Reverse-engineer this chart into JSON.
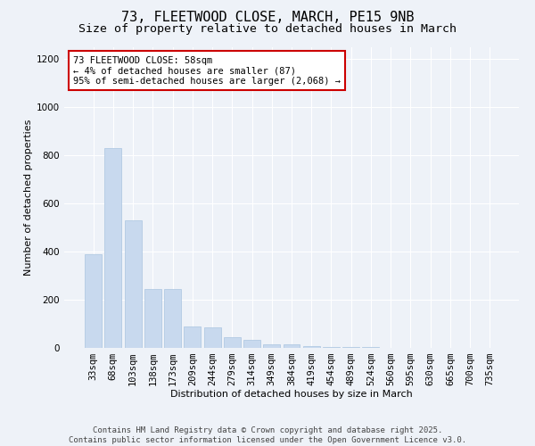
{
  "title1": "73, FLEETWOOD CLOSE, MARCH, PE15 9NB",
  "title2": "Size of property relative to detached houses in March",
  "xlabel": "Distribution of detached houses by size in March",
  "ylabel": "Number of detached properties",
  "bar_labels": [
    "33sqm",
    "68sqm",
    "103sqm",
    "138sqm",
    "173sqm",
    "209sqm",
    "244sqm",
    "279sqm",
    "314sqm",
    "349sqm",
    "384sqm",
    "419sqm",
    "454sqm",
    "489sqm",
    "524sqm",
    "560sqm",
    "595sqm",
    "630sqm",
    "665sqm",
    "700sqm",
    "735sqm"
  ],
  "bar_values": [
    390,
    830,
    530,
    245,
    245,
    90,
    85,
    45,
    35,
    15,
    15,
    8,
    5,
    3,
    2,
    1,
    1,
    1,
    0,
    0,
    0
  ],
  "bar_color": "#c8d9ee",
  "bar_edge_color": "#aac4e0",
  "annotation_text": "73 FLEETWOOD CLOSE: 58sqm\n← 4% of detached houses are smaller (87)\n95% of semi-detached houses are larger (2,068) →",
  "annotation_box_color": "#ffffff",
  "annotation_edge_color": "#cc0000",
  "ylim": [
    0,
    1250
  ],
  "yticks": [
    0,
    200,
    400,
    600,
    800,
    1000,
    1200
  ],
  "bg_color": "#eef2f8",
  "grid_color": "#ffffff",
  "footer_line1": "Contains HM Land Registry data © Crown copyright and database right 2025.",
  "footer_line2": "Contains public sector information licensed under the Open Government Licence v3.0.",
  "title1_fontsize": 11,
  "title2_fontsize": 9.5,
  "xlabel_fontsize": 8,
  "ylabel_fontsize": 8,
  "tick_fontsize": 7.5,
  "annotation_fontsize": 7.5,
  "footer_fontsize": 6.5
}
